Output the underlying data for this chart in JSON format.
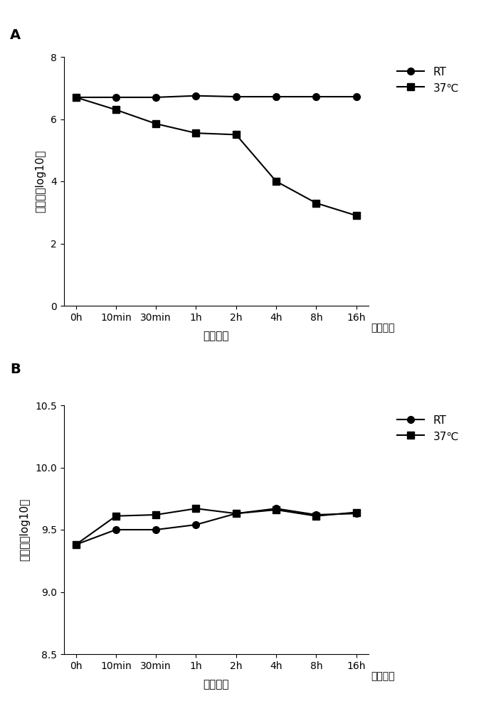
{
  "panel_A": {
    "x_labels": [
      "0h",
      "10min",
      "30min",
      "1h",
      "2h",
      "4h",
      "8h",
      "16h"
    ],
    "RT_values": [
      6.7,
      6.7,
      6.7,
      6.75,
      6.72,
      6.72,
      6.72,
      6.72
    ],
    "C37_values": [
      6.7,
      6.3,
      5.85,
      5.55,
      5.5,
      4.0,
      3.3,
      2.9
    ],
    "ylim": [
      0,
      8
    ],
    "yticks": [
      0,
      2,
      4,
      6,
      8
    ],
    "ylabel": "荧光强度log10値",
    "xlabel": "作用时间",
    "x_note": "孵育时间",
    "legend_RT": "RT",
    "legend_37": "37℃"
  },
  "panel_B": {
    "x_labels": [
      "0h",
      "10min",
      "30min",
      "1h",
      "2h",
      "4h",
      "8h",
      "16h"
    ],
    "RT_values": [
      9.38,
      9.5,
      9.5,
      9.54,
      9.63,
      9.67,
      9.62,
      9.63
    ],
    "C37_values": [
      9.38,
      9.61,
      9.62,
      9.67,
      9.63,
      9.66,
      9.61,
      9.64
    ],
    "ylim": [
      8.5,
      10.5
    ],
    "yticks": [
      8.5,
      9.0,
      9.5,
      10.0,
      10.5
    ],
    "ylabel": "荧光强度log10値",
    "xlabel": "作用时间",
    "x_note": "孵育时间",
    "legend_RT": "RT",
    "legend_37": "37℃"
  },
  "line_color": "#000000",
  "marker_circle": "o",
  "marker_square": "s",
  "panel_label_fontsize": 14,
  "axis_label_fontsize": 11,
  "tick_fontsize": 10,
  "legend_fontsize": 11
}
